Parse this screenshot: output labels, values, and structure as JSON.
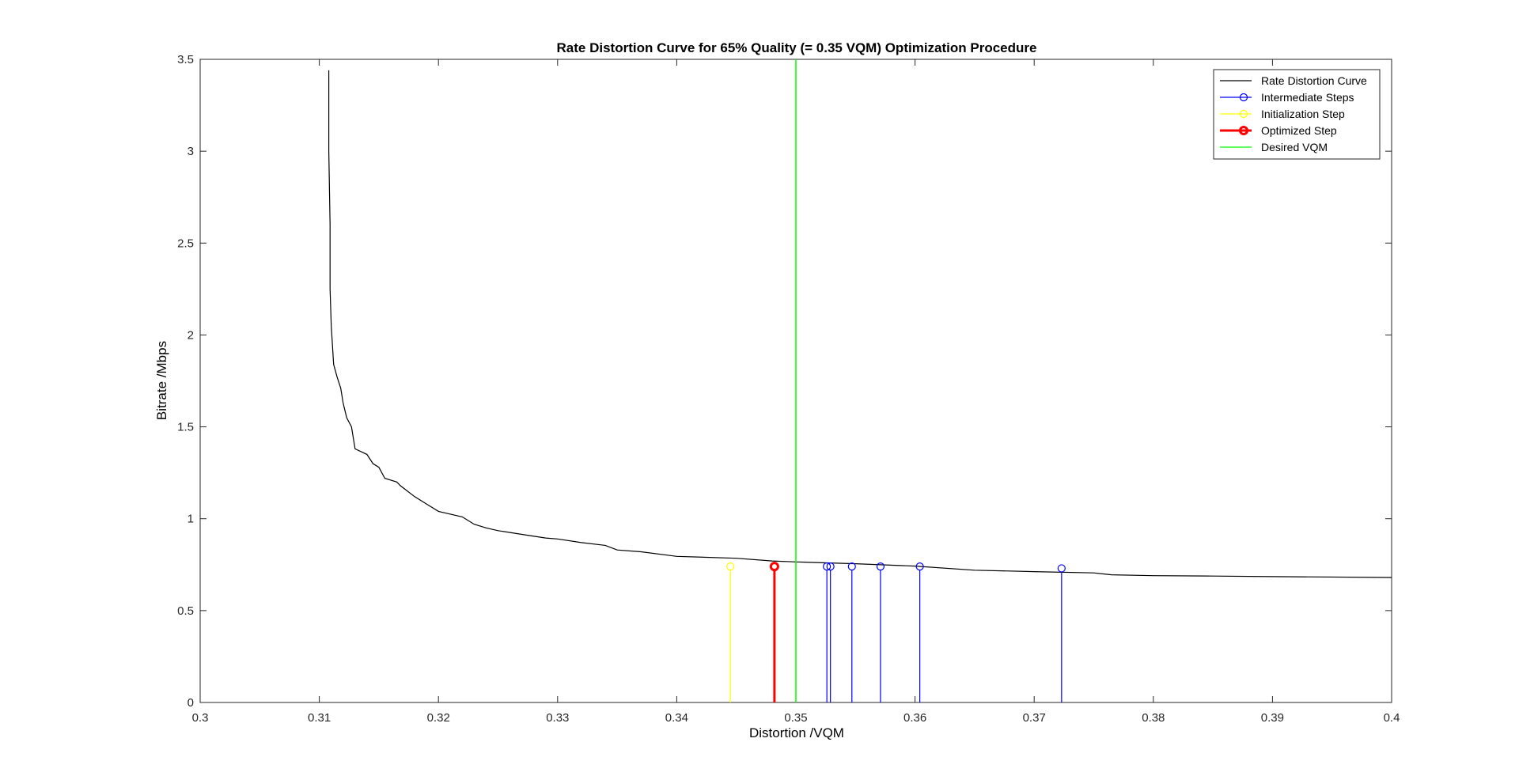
{
  "chart_data": {
    "type": "line",
    "title": "Rate Distortion Curve for 65% Quality (= 0.35 VQM) Optimization Procedure",
    "xlabel": "Distortion /VQM",
    "ylabel": "Bitrate /Mbps",
    "xlim": [
      0.3,
      0.4
    ],
    "ylim": [
      0,
      3.5
    ],
    "xticks": [
      0.3,
      0.31,
      0.32,
      0.33,
      0.34,
      0.35,
      0.36,
      0.37,
      0.38,
      0.39,
      0.4
    ],
    "xtick_labels": [
      "0.3",
      "0.31",
      "0.32",
      "0.33",
      "0.34",
      "0.35",
      "0.36",
      "0.37",
      "0.38",
      "0.39",
      "0.4"
    ],
    "yticks": [
      0,
      0.5,
      1,
      1.5,
      2,
      2.5,
      3,
      3.5
    ],
    "ytick_labels": [
      "0",
      "0.5",
      "1",
      "1.5",
      "2",
      "2.5",
      "3",
      "3.5"
    ],
    "grid": false,
    "legend_position": "top-right",
    "colors": {
      "curve": "#000000",
      "intermediate": "#0000ff",
      "initialization": "#ffff00",
      "optimized": "#ff0000",
      "desired": "#00ff00"
    },
    "series": [
      {
        "name": "Rate Distortion Curve",
        "style": "line",
        "x": [
          0.3108,
          0.3108,
          0.3109,
          0.3109,
          0.311,
          0.3112,
          0.3115,
          0.3118,
          0.312,
          0.3123,
          0.3127,
          0.313,
          0.314,
          0.3145,
          0.315,
          0.3155,
          0.3165,
          0.3168,
          0.318,
          0.319,
          0.32,
          0.322,
          0.323,
          0.324,
          0.325,
          0.327,
          0.329,
          0.33,
          0.332,
          0.334,
          0.335,
          0.337,
          0.34,
          0.345,
          0.348,
          0.35,
          0.355,
          0.36,
          0.365,
          0.37,
          0.375,
          0.3765,
          0.38,
          0.385,
          0.39,
          0.4
        ],
        "y": [
          3.44,
          3.0,
          2.6,
          2.25,
          2.05,
          1.84,
          1.77,
          1.71,
          1.63,
          1.55,
          1.5,
          1.38,
          1.35,
          1.3,
          1.28,
          1.22,
          1.2,
          1.18,
          1.12,
          1.08,
          1.04,
          1.01,
          0.97,
          0.95,
          0.935,
          0.915,
          0.895,
          0.89,
          0.87,
          0.855,
          0.83,
          0.82,
          0.795,
          0.785,
          0.77,
          0.765,
          0.755,
          0.742,
          0.72,
          0.712,
          0.705,
          0.695,
          0.69,
          0.688,
          0.685,
          0.68
        ]
      },
      {
        "name": "Intermediate Steps",
        "style": "stem",
        "x": [
          0.3526,
          0.3529,
          0.3547,
          0.3571,
          0.3604,
          0.3723
        ],
        "y": [
          0.74,
          0.74,
          0.74,
          0.74,
          0.74,
          0.73
        ]
      },
      {
        "name": "Initialization Step",
        "style": "stem",
        "x": [
          0.3445
        ],
        "y": [
          0.74
        ]
      },
      {
        "name": "Optimized Step",
        "style": "stem",
        "x": [
          0.3482
        ],
        "y": [
          0.74
        ]
      },
      {
        "name": "Desired VQM",
        "style": "vline",
        "x": [
          0.35
        ]
      }
    ]
  }
}
